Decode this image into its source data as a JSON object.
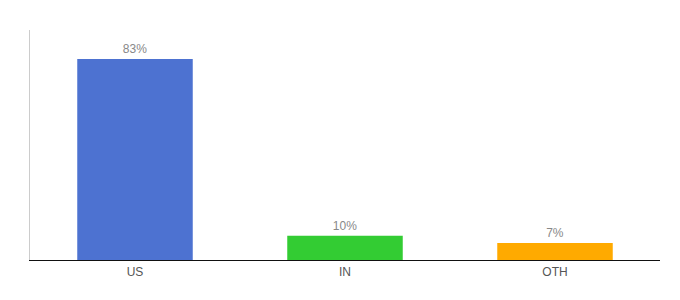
{
  "chart_data": {
    "type": "bar",
    "categories": [
      "US",
      "IN",
      "OTH"
    ],
    "values": [
      83,
      10,
      7
    ],
    "value_labels": [
      "83%",
      "10%",
      "7%"
    ],
    "colors": [
      "#4d72d1",
      "#33cc33",
      "#ffaa00"
    ],
    "ylim": [
      0,
      95
    ],
    "grid": false,
    "data_labels": true,
    "tick_labels": "x"
  }
}
